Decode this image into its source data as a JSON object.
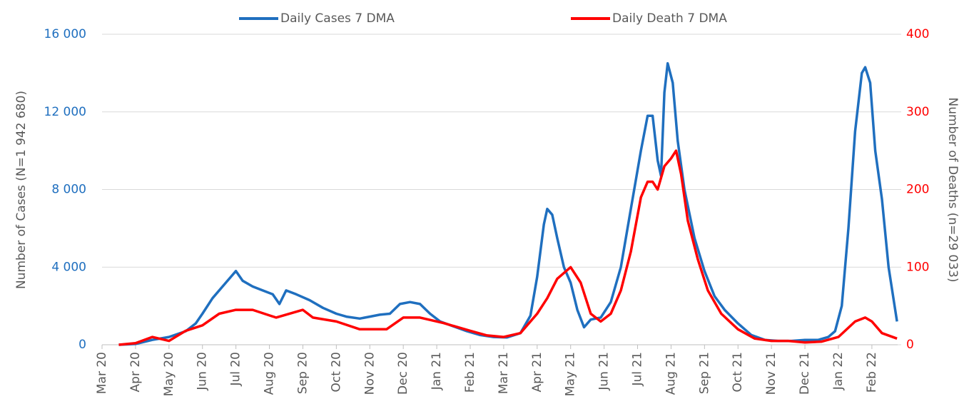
{
  "chart_data": {
    "type": "line",
    "ylabel": "Number of Cases (N=1 942 680)",
    "y2label": "Number of Deaths (n=29 033)",
    "xlim": [
      0,
      23.77
    ],
    "xticks": [
      {
        "value": 0,
        "label": "Mar 20"
      },
      {
        "value": 1,
        "label": "Apr 20"
      },
      {
        "value": 2,
        "label": "May 20"
      },
      {
        "value": 3,
        "label": "Jun 20"
      },
      {
        "value": 4,
        "label": "Jul 20"
      },
      {
        "value": 5,
        "label": "Aug 20"
      },
      {
        "value": 6,
        "label": "Sep 20"
      },
      {
        "value": 7,
        "label": "Oct 20"
      },
      {
        "value": 8,
        "label": "Nov 20"
      },
      {
        "value": 9,
        "label": "Dec 20"
      },
      {
        "value": 10,
        "label": "Jan 21"
      },
      {
        "value": 11,
        "label": "Feb 21"
      },
      {
        "value": 12,
        "label": "Mar 21"
      },
      {
        "value": 13,
        "label": "Apr 21"
      },
      {
        "value": 14,
        "label": "May 21"
      },
      {
        "value": 15,
        "label": "Jun 21"
      },
      {
        "value": 16,
        "label": "Jul 21"
      },
      {
        "value": 17,
        "label": "Aug 21"
      },
      {
        "value": 18,
        "label": "Sep 21"
      },
      {
        "value": 19,
        "label": "Oct 21"
      },
      {
        "value": 20,
        "label": "Nov 21"
      },
      {
        "value": 21,
        "label": "Dec 21"
      },
      {
        "value": 22,
        "label": "Jan 22"
      },
      {
        "value": 23,
        "label": "Feb 22"
      }
    ],
    "ylim": [
      0,
      16000
    ],
    "yticks": [
      0,
      {
        "value": 4000,
        "label": "4 000"
      },
      {
        "value": 8000,
        "label": "8 000"
      },
      {
        "value": 12000,
        "label": "12 000"
      },
      {
        "value": 16000,
        "label": "16 000"
      }
    ],
    "y2lim": [
      0,
      400
    ],
    "y2ticks": [
      0,
      100,
      200,
      300,
      400
    ],
    "grid": true,
    "legend": "top",
    "series": [
      {
        "name": "Daily Cases 7 DMA",
        "color": "#1f6fbf",
        "axis": "y",
        "x": [
          0.5,
          1.0,
          1.5,
          2.0,
          2.5,
          2.8,
          3.0,
          3.3,
          3.6,
          3.9,
          4.0,
          4.2,
          4.5,
          4.8,
          5.1,
          5.3,
          5.5,
          5.8,
          6.2,
          6.6,
          7.0,
          7.3,
          7.7,
          8.0,
          8.3,
          8.6,
          8.9,
          9.2,
          9.5,
          9.8,
          10.1,
          10.5,
          10.9,
          11.3,
          11.7,
          12.1,
          12.5,
          12.8,
          13.0,
          13.2,
          13.3,
          13.45,
          13.6,
          13.8,
          14.0,
          14.2,
          14.4,
          14.6,
          14.9,
          15.2,
          15.5,
          15.8,
          16.1,
          16.3,
          16.45,
          16.6,
          16.7,
          16.8,
          16.9,
          17.05,
          17.2,
          17.4,
          17.7,
          18.0,
          18.3,
          18.6,
          19.0,
          19.4,
          19.8,
          20.2,
          20.6,
          21.0,
          21.4,
          21.7,
          21.9,
          22.1,
          22.3,
          22.5,
          22.7,
          22.8,
          22.95,
          23.1,
          23.3,
          23.5,
          23.75
        ],
        "values": [
          0,
          40,
          250,
          400,
          700,
          1100,
          1600,
          2400,
          3000,
          3600,
          3800,
          3300,
          3000,
          2800,
          2600,
          2100,
          2800,
          2600,
          2300,
          1900,
          1600,
          1450,
          1350,
          1450,
          1550,
          1600,
          2100,
          2200,
          2100,
          1600,
          1200,
          950,
          700,
          500,
          400,
          380,
          600,
          1500,
          3500,
          6200,
          7000,
          6700,
          5500,
          4000,
          3200,
          1800,
          900,
          1300,
          1400,
          2200,
          4000,
          7000,
          10000,
          11800,
          11800,
          9500,
          8700,
          13000,
          14500,
          13500,
          10500,
          8000,
          5500,
          3800,
          2500,
          1800,
          1100,
          500,
          250,
          200,
          200,
          250,
          250,
          400,
          700,
          2000,
          6000,
          11000,
          14000,
          14300,
          13500,
          10000,
          7500,
          4000,
          1200
        ]
      },
      {
        "name": "Daily Death 7 DMA",
        "color": "#ff0000",
        "axis": "y2",
        "x": [
          0.5,
          1.0,
          1.5,
          2.0,
          2.5,
          3.0,
          3.5,
          4.0,
          4.5,
          5.2,
          6.0,
          6.3,
          7.0,
          7.7,
          8.5,
          9.0,
          9.5,
          10.2,
          11.0,
          11.5,
          12.0,
          12.5,
          13.0,
          13.3,
          13.6,
          14.0,
          14.3,
          14.6,
          14.9,
          15.2,
          15.5,
          15.8,
          16.1,
          16.3,
          16.45,
          16.6,
          16.8,
          17.0,
          17.15,
          17.3,
          17.5,
          17.8,
          18.1,
          18.5,
          19.0,
          19.5,
          20.0,
          20.5,
          21.0,
          21.5,
          22.0,
          22.5,
          22.8,
          23.0,
          23.3,
          23.75
        ],
        "values": [
          0,
          2,
          10,
          5,
          18,
          25,
          40,
          45,
          45,
          35,
          45,
          35,
          30,
          20,
          20,
          35,
          35,
          28,
          18,
          12,
          10,
          15,
          40,
          60,
          85,
          100,
          80,
          40,
          30,
          40,
          70,
          120,
          190,
          210,
          210,
          200,
          230,
          240,
          250,
          220,
          160,
          110,
          70,
          40,
          20,
          8,
          5,
          5,
          3,
          4,
          10,
          30,
          35,
          30,
          15,
          8
        ]
      }
    ]
  }
}
